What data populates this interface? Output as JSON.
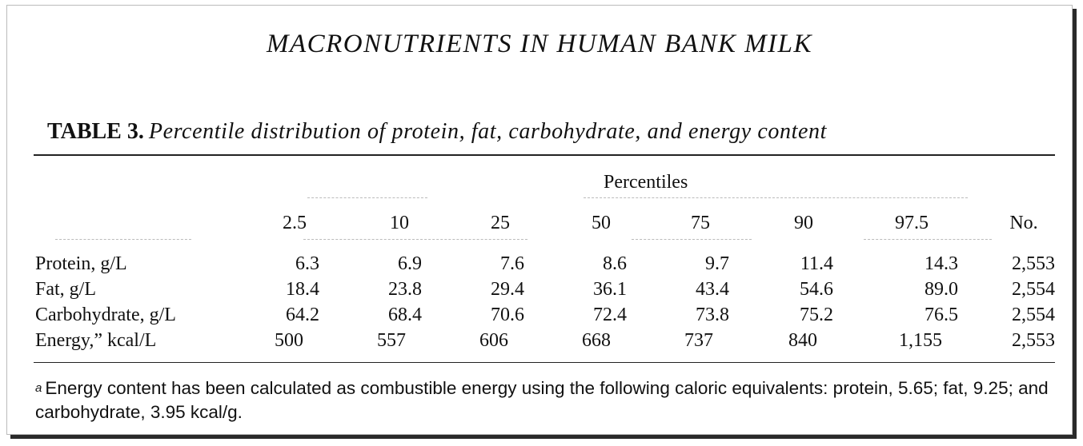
{
  "running_head": "MACRONUTRIENTS IN HUMAN BANK MILK",
  "table": {
    "label": "TABLE 3.",
    "caption": "Percentile distribution of protein, fat, carbohydrate, and energy content",
    "group_header": "Percentiles",
    "columns": [
      "2.5",
      "10",
      "25",
      "50",
      "75",
      "90",
      "97.5",
      "No."
    ],
    "rows": [
      {
        "label": "Protein, g/L",
        "values": [
          "6.3",
          "6.9",
          "7.6",
          "8.6",
          "9.7",
          "11.4",
          "14.3",
          "2,553"
        ]
      },
      {
        "label": "Fat, g/L",
        "values": [
          "18.4",
          "23.8",
          "29.4",
          "36.1",
          "43.4",
          "54.6",
          "89.0",
          "2,554"
        ]
      },
      {
        "label": "Carbohydrate, g/L",
        "values": [
          "64.2",
          "68.4",
          "70.6",
          "72.4",
          "73.8",
          "75.2",
          "76.5",
          "2,554"
        ]
      },
      {
        "label": "Energy,” kcal/L",
        "values": [
          "500",
          "557",
          "606",
          "668",
          "737",
          "840",
          "1,155",
          "2,553"
        ]
      }
    ],
    "footnote_mark": "a",
    "footnote": "Energy content has been calculated as combustible energy using the following caloric equivalents: protein, 5.65; fat, 9.25; and carbohydrate, 3.95 kcal/g."
  }
}
